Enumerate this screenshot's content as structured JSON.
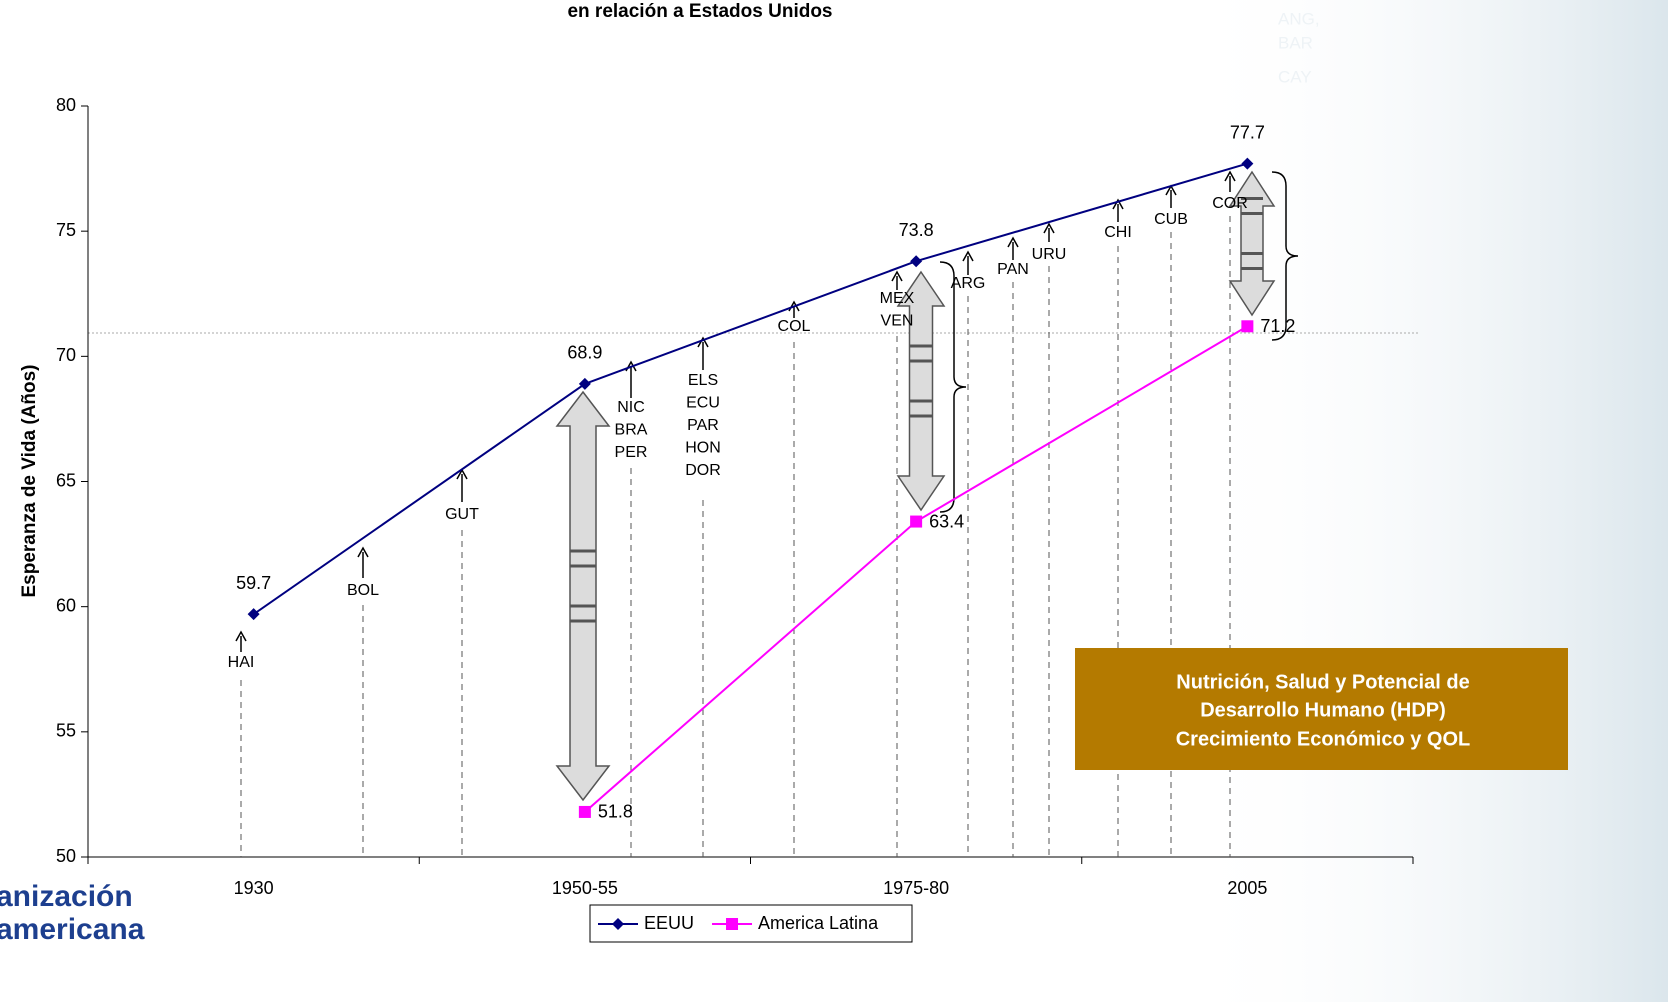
{
  "chart_data": {
    "type": "line",
    "title": "en relación a Estados Unidos",
    "y_label": "Esperanza de Vida (Años)",
    "categories": [
      "1930",
      "1950-55",
      "1975-80",
      "2005"
    ],
    "series": [
      {
        "name": "EEUU",
        "color": "#000080",
        "marker": "diamond",
        "values": [
          59.7,
          68.9,
          73.8,
          77.7
        ]
      },
      {
        "name": "America Latina",
        "color": "#ff00ff",
        "marker": "square",
        "values": [
          null,
          51.8,
          63.4,
          71.2
        ]
      }
    ],
    "ylim": [
      50,
      80
    ],
    "yticks": [
      50,
      55,
      60,
      65,
      70,
      75,
      80
    ],
    "grid": false,
    "legend": "bottom",
    "annotations": [
      [
        "HAI"
      ],
      [
        "BOL"
      ],
      [
        "GUT"
      ],
      [
        "NIC",
        "BRA",
        "PER"
      ],
      [
        "ELS",
        "ECU",
        "PAR",
        "HON",
        "DOR"
      ],
      [
        "COL"
      ],
      [
        "MEX",
        "VEN"
      ],
      [
        "ARG"
      ],
      [
        "PAN"
      ],
      [
        "URU"
      ],
      [
        "CHI"
      ],
      [
        "CUB"
      ],
      [
        "COR"
      ]
    ],
    "faint_labels": [
      "ANG,",
      "BAR",
      "CAY"
    ],
    "note": [
      "Nutrición, Salud y Potencial de",
      "Desarrollo Humano (HDP)",
      "Crecimiento Económico y QOL"
    ],
    "logo": [
      "anización",
      "americana"
    ]
  }
}
